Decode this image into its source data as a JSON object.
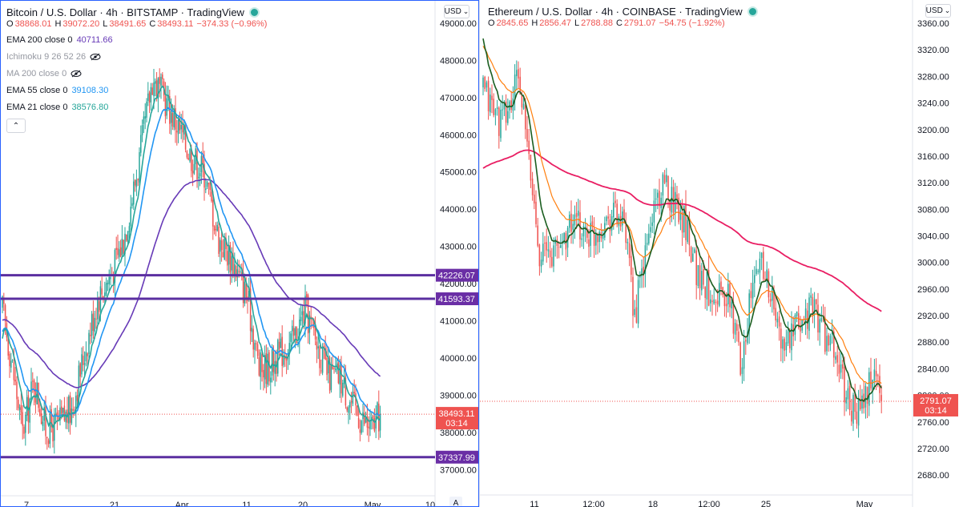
{
  "colors": {
    "up": "#26a69a",
    "down": "#ef5350",
    "ema200": "#673ab7",
    "ema55": "#2196f3",
    "ema21": "#26a69a",
    "eth_ema200": "#e91e63",
    "eth_orange": "#ff7f0e",
    "eth_green": "#1b5e20",
    "level_line": "#5b2fa0",
    "tag_bg": "#6a2ea5",
    "price_tag": "#ef5350",
    "pane_border": "#2962ff"
  },
  "left": {
    "title": "Bitcoin / U.S. Dollar · 4h · BITSTAMP · TradingView",
    "ohlc": {
      "o_label": "O",
      "o": "38868.01",
      "h_label": "H",
      "h": "39072.20",
      "l_label": "L",
      "l": "38491.65",
      "c_label": "C",
      "c": "38493.11",
      "chg": "−374.33 (−0.96%)"
    },
    "indicators": [
      {
        "label": "EMA 200 close 0",
        "value": "40711.66",
        "color": "#673ab7",
        "muted": false,
        "hidden": false
      },
      {
        "label": "Ichimoku 9 26 52 26",
        "value": "",
        "color": "#9598a1",
        "muted": true,
        "hidden": true
      },
      {
        "label": "MA 200 close 0",
        "value": "",
        "color": "#9598a1",
        "muted": true,
        "hidden": true
      },
      {
        "label": "EMA 55 close 0",
        "value": "39108.30",
        "color": "#2196f3",
        "muted": false,
        "hidden": false
      },
      {
        "label": "EMA 21 close 0",
        "value": "38576.80",
        "color": "#26a69a",
        "muted": false,
        "hidden": false
      }
    ],
    "collapse_glyph": "⌃",
    "currency": "USD",
    "currency_glyph": "⌄",
    "corner_glyph": "A",
    "price_tag": {
      "value": "38493.11",
      "countdown": "03:14"
    },
    "level_tags": [
      "42226.07",
      "41593.37",
      "37337.99"
    ],
    "x_ticks": [
      "7",
      "21",
      "Apr",
      "11",
      "20",
      "May",
      "10"
    ]
  },
  "right": {
    "title": "Ethereum / U.S. Dollar · 4h · COINBASE · TradingView",
    "ohlc": {
      "o_label": "O",
      "o": "2845.65",
      "h_label": "H",
      "h": "2856.47",
      "l_label": "L",
      "l": "2788.88",
      "c_label": "C",
      "c": "2791.07",
      "chg": "−54.75 (−1.92%)"
    },
    "currency": "USD",
    "currency_glyph": "⌄",
    "price_tag": {
      "value": "2791.07",
      "countdown": "03:14"
    },
    "x_ticks": [
      "11",
      "12:00",
      "18",
      "12:00",
      "25",
      "May"
    ]
  },
  "chart_data": [
    {
      "type": "candlestick",
      "title": "Bitcoin / U.S. Dollar · 4h · BITSTAMP · TradingView",
      "ylim": [
        36300,
        49600
      ],
      "y_ticks": [
        37000,
        38000,
        39000,
        40000,
        41000,
        42000,
        43000,
        44000,
        45000,
        46000,
        47000,
        48000,
        49000
      ],
      "x_ticks": [
        "7",
        "21",
        "Apr",
        "11",
        "20",
        "May",
        "10"
      ],
      "close_anchors": [
        [
          0,
          41300
        ],
        [
          6,
          40000
        ],
        [
          14,
          38000
        ],
        [
          22,
          39400
        ],
        [
          30,
          38100
        ],
        [
          38,
          38200
        ],
        [
          48,
          38600
        ],
        [
          56,
          40000
        ],
        [
          66,
          41600
        ],
        [
          76,
          42300
        ],
        [
          84,
          43200
        ],
        [
          94,
          45100
        ],
        [
          104,
          47500
        ],
        [
          112,
          47000
        ],
        [
          122,
          46200
        ],
        [
          130,
          45500
        ],
        [
          140,
          45000
        ],
        [
          150,
          43200
        ],
        [
          160,
          42600
        ],
        [
          170,
          41600
        ],
        [
          178,
          39700
        ],
        [
          186,
          39800
        ],
        [
          194,
          40200
        ],
        [
          202,
          40500
        ],
        [
          210,
          41300
        ],
        [
          218,
          40400
        ],
        [
          226,
          39500
        ],
        [
          234,
          39500
        ],
        [
          240,
          38900
        ],
        [
          248,
          38400
        ],
        [
          256,
          38100
        ],
        [
          262,
          38493
        ]
      ],
      "levels": [
        42226.07,
        41593.37,
        37337.99
      ],
      "last": 38493.11,
      "series": [
        {
          "name": "EMA 200 close 0",
          "period": 200,
          "last": 40711.66
        },
        {
          "name": "EMA 55 close 0",
          "period": 55,
          "last": 39108.3
        },
        {
          "name": "EMA 21 close 0",
          "period": 21,
          "last": 38576.8
        }
      ]
    },
    {
      "type": "candlestick",
      "title": "Ethereum / U.S. Dollar · 4h · COINBASE · TradingView",
      "ylim": [
        2650,
        3395
      ],
      "y_ticks": [
        2680,
        2720,
        2760,
        2800,
        2840,
        2880,
        2920,
        2960,
        3000,
        3040,
        3080,
        3120,
        3160,
        3200,
        3240,
        3280,
        3320,
        3360
      ],
      "x_ticks": [
        "11",
        "12:00",
        "18",
        "12:00",
        "25",
        "May"
      ],
      "close_anchors": [
        [
          0,
          3260
        ],
        [
          6,
          3230
        ],
        [
          10,
          3210
        ],
        [
          16,
          3240
        ],
        [
          20,
          3285
        ],
        [
          26,
          3150
        ],
        [
          32,
          3020
        ],
        [
          38,
          3010
        ],
        [
          44,
          3030
        ],
        [
          50,
          3060
        ],
        [
          56,
          3050
        ],
        [
          62,
          3040
        ],
        [
          68,
          3060
        ],
        [
          74,
          3080
        ],
        [
          80,
          3050
        ],
        [
          86,
          2920
        ],
        [
          92,
          3010
        ],
        [
          98,
          3100
        ],
        [
          104,
          3110
        ],
        [
          110,
          3090
        ],
        [
          116,
          3050
        ],
        [
          122,
          2980
        ],
        [
          128,
          2960
        ],
        [
          134,
          2955
        ],
        [
          140,
          2940
        ],
        [
          146,
          2850
        ],
        [
          152,
          2950
        ],
        [
          158,
          3010
        ],
        [
          164,
          2940
        ],
        [
          170,
          2870
        ],
        [
          176,
          2890
        ],
        [
          182,
          2920
        ],
        [
          188,
          2930
        ],
        [
          194,
          2890
        ],
        [
          200,
          2860
        ],
        [
          206,
          2800
        ],
        [
          212,
          2770
        ],
        [
          218,
          2800
        ],
        [
          222,
          2840
        ],
        [
          226,
          2791
        ]
      ],
      "last": 2791.07,
      "series": [
        {
          "name": "EMA (pink)",
          "period": 200
        },
        {
          "name": "EMA (orange)",
          "period": 55
        },
        {
          "name": "EMA (dark green)",
          "period": 21
        }
      ]
    }
  ]
}
